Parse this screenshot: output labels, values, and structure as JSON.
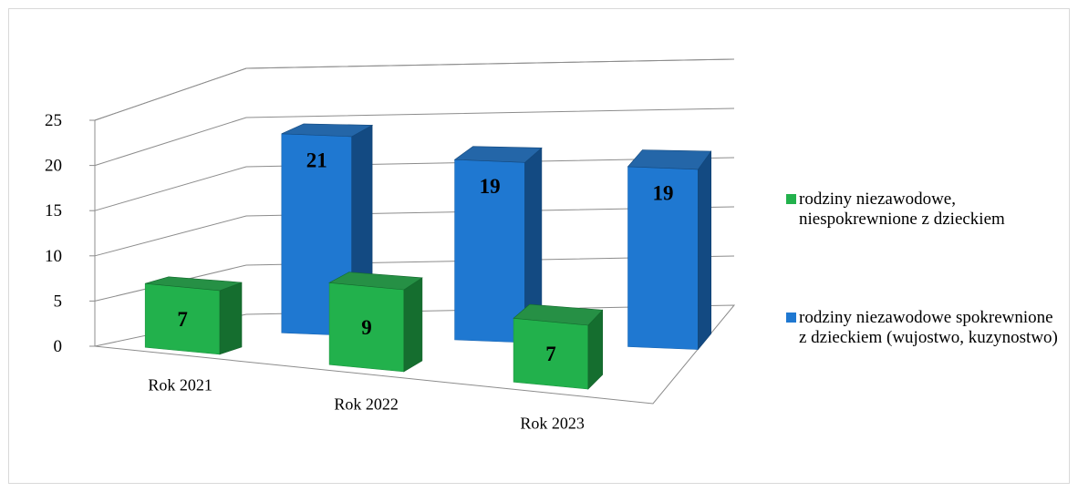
{
  "chart_data": {
    "type": "bar",
    "categories": [
      "Rok 2021",
      "Rok 2022",
      "Rok 2023"
    ],
    "series": [
      {
        "name": "rodziny niezawodowe, niespokrewnione z dzieckiem",
        "values": [
          7,
          9,
          7
        ],
        "color": "#22b14c"
      },
      {
        "name": "rodziny niezawodowe spokrewnione z dzieckiem (wujostwo, kuzynostwo)",
        "values": [
          21,
          19,
          19
        ],
        "color": "#1f78d1"
      }
    ],
    "ylim": [
      0,
      25
    ],
    "yticks": [
      "0",
      "5",
      "10",
      "15",
      "20",
      "25"
    ],
    "grid": true,
    "legend_position": "right",
    "style": "3d-column"
  }
}
